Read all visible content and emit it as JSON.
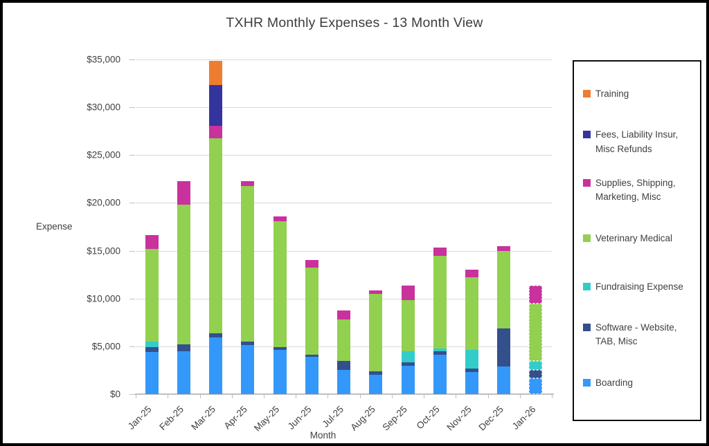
{
  "title": "TXHR Monthly Expenses - 13 Month View",
  "y_axis": {
    "title": "Expense",
    "tick_labels": [
      "$0",
      "$5,000",
      "$10,000",
      "$15,000",
      "$20,000",
      "$25,000",
      "$30,000",
      "$35,000"
    ],
    "min": 0,
    "max": 35000,
    "step": 5000
  },
  "x_axis": {
    "title": "Month",
    "categories": [
      "Jan-25",
      "Feb-25",
      "Mar-25",
      "Apr-25",
      "May-25",
      "Jun-25",
      "Jul-25",
      "Aug-25",
      "Sep-25",
      "Oct-25",
      "Nov-25",
      "Dec-25",
      "Jan-26"
    ]
  },
  "legend": {
    "items": [
      {
        "label": "Training",
        "color": "#ED7D31"
      },
      {
        "label": "Fees, Liability Insur, Misc Refunds",
        "color": "#34349E"
      },
      {
        "label": "Supplies, Shipping, Marketing, Misc",
        "color": "#C9319D"
      },
      {
        "label": "Veterinary Medical",
        "color": "#92D050"
      },
      {
        "label": "Fundraising Expense",
        "color": "#33CCCB"
      },
      {
        "label": "Software - Website, TAB, Misc",
        "color": "#33508C"
      },
      {
        "label": "Boarding",
        "color": "#3498FB"
      }
    ]
  },
  "chart_data": {
    "type": "bar",
    "stacked": true,
    "title": "TXHR Monthly Expenses - 13 Month View",
    "xlabel": "Month",
    "ylabel": "Expense",
    "ylim": [
      0,
      35000
    ],
    "ytick_step": 5000,
    "grid": true,
    "legend_position": "right",
    "categories": [
      "Jan-25",
      "Feb-25",
      "Mar-25",
      "Apr-25",
      "May-25",
      "Jun-25",
      "Jul-25",
      "Aug-25",
      "Sep-25",
      "Oct-25",
      "Nov-25",
      "Dec-25",
      "Jan-26"
    ],
    "series": [
      {
        "name": "Boarding",
        "color": "#3498FB",
        "values": [
          4400,
          4500,
          5900,
          5100,
          4600,
          3900,
          2500,
          2050,
          2950,
          4100,
          2350,
          2900,
          1700
        ]
      },
      {
        "name": "Software - Website, TAB, Misc",
        "color": "#33508C",
        "values": [
          550,
          700,
          450,
          400,
          300,
          250,
          950,
          350,
          400,
          350,
          300,
          4000,
          800
        ]
      },
      {
        "name": "Fundraising Expense",
        "color": "#33CCCB",
        "values": [
          550,
          0,
          0,
          0,
          0,
          0,
          0,
          0,
          1100,
          350,
          1950,
          0,
          1000
        ]
      },
      {
        "name": "Veterinary Medical",
        "color": "#92D050",
        "values": [
          9700,
          14600,
          20400,
          16300,
          13200,
          9050,
          4350,
          8100,
          5400,
          9700,
          7600,
          8050,
          6000
        ]
      },
      {
        "name": "Supplies, Shipping, Marketing, Misc",
        "color": "#C9319D",
        "values": [
          1400,
          2500,
          1300,
          500,
          500,
          800,
          950,
          350,
          1500,
          850,
          800,
          500,
          1850
        ]
      },
      {
        "name": "Fees, Liability Insur, Misc Refunds",
        "color": "#34349E",
        "values": [
          0,
          0,
          4300,
          0,
          0,
          0,
          0,
          0,
          0,
          0,
          0,
          0,
          0
        ]
      },
      {
        "name": "Training",
        "color": "#ED7D31",
        "values": [
          0,
          0,
          2500,
          0,
          0,
          0,
          0,
          0,
          0,
          0,
          0,
          0,
          0
        ]
      }
    ],
    "last_bar_dashed_outline": true
  }
}
